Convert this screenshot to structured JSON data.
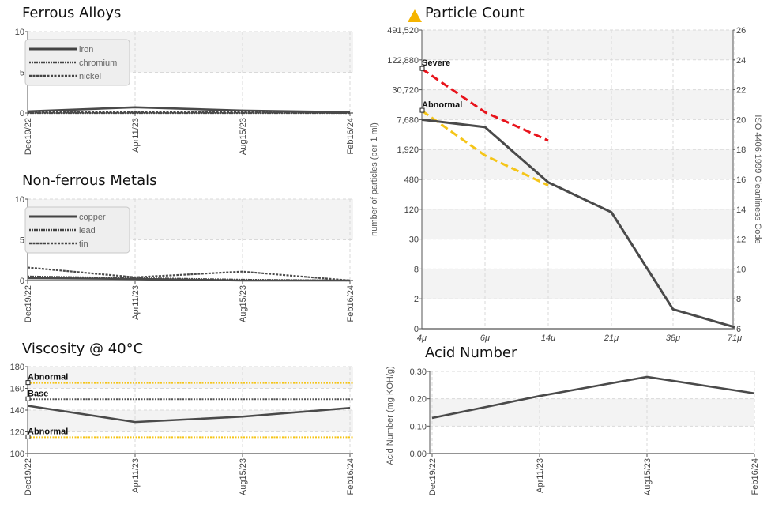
{
  "titles": {
    "ferrous": "Ferrous Alloys",
    "nonferrous": "Non-ferrous Metals",
    "viscosity": "Viscosity @ 40°C",
    "particle": "Particle Count",
    "acid": "Acid Number"
  },
  "colors": {
    "series": "#4a4a4a",
    "severe": "#e8141c",
    "abnormal": "#f5c518",
    "warning_icon": "#f5b400",
    "grid": "#d9d9d9",
    "band": "#f3f3f3"
  },
  "chart_data": [
    {
      "id": "ferrous",
      "type": "line",
      "title": "Ferrous Alloys",
      "categories": [
        "Dec19/22",
        "Apr11/23",
        "Aug15/23",
        "Feb16/24"
      ],
      "ylim": [
        0,
        10
      ],
      "yticks": [
        "0",
        "5",
        "10"
      ],
      "legend": "top-left",
      "series": [
        {
          "name": "iron",
          "values": [
            0.2,
            0.7,
            0.3,
            0.1
          ]
        },
        {
          "name": "chromium",
          "values": [
            0.0,
            0.0,
            0.0,
            0.0
          ]
        },
        {
          "name": "nickel",
          "values": [
            0.1,
            0.1,
            0.1,
            0.0
          ]
        }
      ]
    },
    {
      "id": "nonferrous",
      "type": "line",
      "title": "Non-ferrous Metals",
      "categories": [
        "Dec19/22",
        "Apr11/23",
        "Aug15/23",
        "Feb16/24"
      ],
      "ylim": [
        0,
        10
      ],
      "yticks": [
        "0",
        "5",
        "10"
      ],
      "legend": "top-left",
      "series": [
        {
          "name": "copper",
          "values": [
            0.3,
            0.2,
            0.0,
            0.0
          ]
        },
        {
          "name": "lead",
          "values": [
            0.5,
            0.3,
            0.1,
            0.0
          ]
        },
        {
          "name": "tin",
          "values": [
            1.6,
            0.4,
            1.1,
            0.0
          ]
        }
      ]
    },
    {
      "id": "viscosity",
      "type": "line",
      "title": "Viscosity @ 40°C",
      "categories": [
        "Dec19/22",
        "Apr11/23",
        "Aug15/23",
        "Feb16/24"
      ],
      "ylim": [
        100,
        180
      ],
      "yticks": [
        "100",
        "120",
        "140",
        "160",
        "180"
      ],
      "series": [
        {
          "values": [
            144,
            129,
            134,
            142
          ]
        }
      ],
      "limits": [
        {
          "label": "Abnormal",
          "value": 165,
          "kind": "abnormal"
        },
        {
          "label": "Base",
          "value": 150,
          "kind": "base"
        },
        {
          "label": "Abnormal",
          "value": 115,
          "kind": "abnormal"
        }
      ]
    },
    {
      "id": "particle",
      "type": "line",
      "title": "Particle Count",
      "categories": [
        "4μ",
        "6μ",
        "14μ",
        "21μ",
        "38μ",
        "71μ"
      ],
      "ylabel": "number of particles (per 1 ml)",
      "y2label": "ISO 4406:1999 Cleanliness Code",
      "yscale": "log",
      "yticks": [
        "0",
        "2",
        "8",
        "30",
        "120",
        "480",
        "1,920",
        "7,680",
        "30,720",
        "122,880",
        "491,520"
      ],
      "y2ticks": [
        "6",
        "8",
        "10",
        "12",
        "14",
        "16",
        "18",
        "20",
        "22",
        "24",
        "26"
      ],
      "series": [
        {
          "values": [
            20,
            19.5,
            15.8,
            13.8,
            7.3,
            6.1
          ]
        }
      ],
      "limits": [
        {
          "label": "Severe",
          "kind": "severe",
          "values": [
            23.4,
            20.5,
            18.6
          ]
        },
        {
          "label": "Abnormal",
          "kind": "abnormal",
          "values": [
            20.6,
            17.6,
            15.6
          ]
        }
      ]
    },
    {
      "id": "acid",
      "type": "line",
      "title": "Acid Number",
      "categories": [
        "Dec19/22",
        "Apr11/23",
        "Aug15/23",
        "Feb16/24"
      ],
      "ylabel": "Acid Number (mg KOH/g)",
      "ylim": [
        0,
        0.3
      ],
      "yticks": [
        "0.00",
        "0.10",
        "0.20",
        "0.30"
      ],
      "series": [
        {
          "values": [
            0.13,
            0.21,
            0.28,
            0.22
          ]
        }
      ]
    }
  ]
}
